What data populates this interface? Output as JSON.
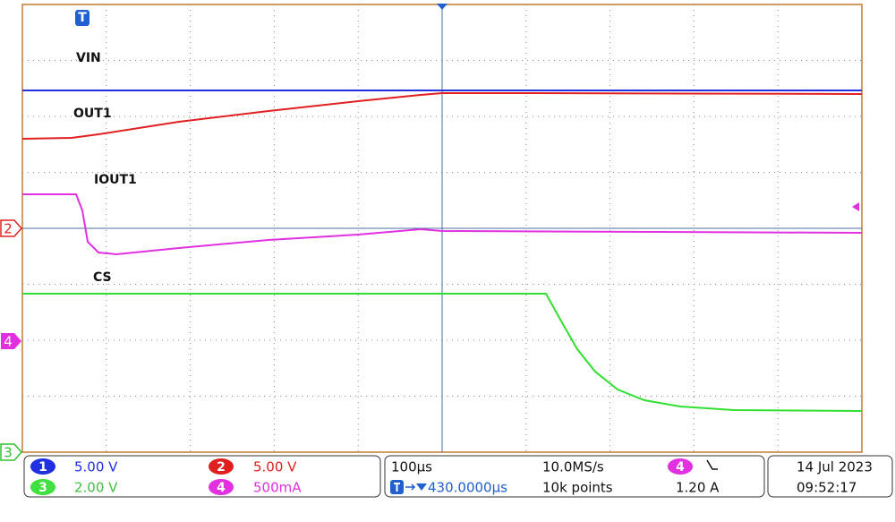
{
  "waveform_labels": [
    "VIN",
    "OUT1",
    "IOUT1",
    "CS"
  ],
  "markers": {
    "trigger": "T",
    "ch2": "2",
    "ch4": "4",
    "ch3": "3"
  },
  "channels": [
    {
      "number": "1",
      "scale": "5.00 V"
    },
    {
      "number": "2",
      "scale": "5.00 V"
    },
    {
      "number": "3",
      "scale": "2.00 V"
    },
    {
      "number": "4",
      "scale": "500mA"
    }
  ],
  "timebase": {
    "scale": "100µs",
    "sample_rate": "10.0MS/s",
    "trigger_position": "430.0000µs",
    "record_length": "10k points"
  },
  "trigger": {
    "channel": "4",
    "level": "1.20 A"
  },
  "timestamp": {
    "date": "14 Jul 2023",
    "time": "09:52:17"
  }
}
